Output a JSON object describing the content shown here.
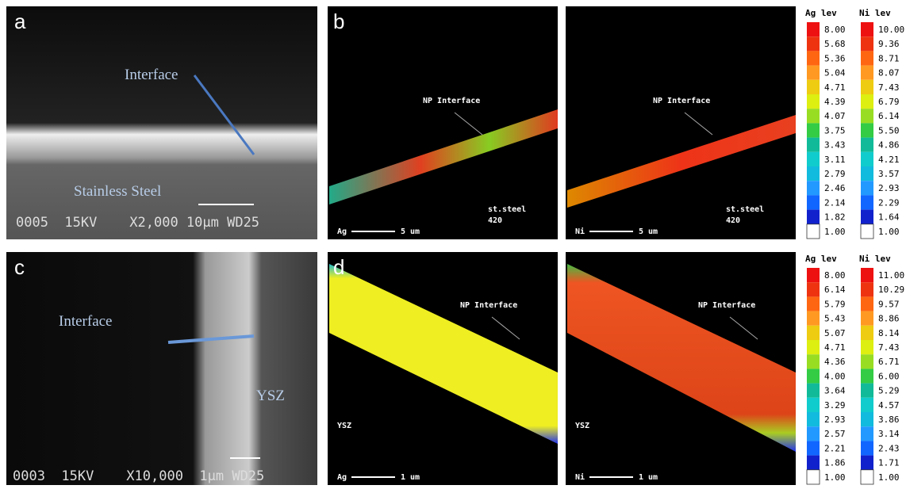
{
  "panel_a": {
    "label": "a",
    "interface": "Interface",
    "substrate": "Stainless Steel",
    "info": "0005  15KV    X2,000 10μm WD25"
  },
  "panel_b": {
    "label": "b",
    "maps": [
      {
        "element": "Ag",
        "annotation": "NP Interface",
        "scale": "5 um",
        "substrate": "st.steel",
        "grade": "420"
      },
      {
        "element": "Ni",
        "annotation": "NP Interface",
        "scale": "5 um",
        "substrate": "st.steel",
        "grade": "420"
      }
    ],
    "scales": [
      {
        "title": "Ag lev",
        "levels": [
          "8.00",
          "5.68",
          "5.36",
          "5.04",
          "4.71",
          "4.39",
          "4.07",
          "3.75",
          "3.43",
          "3.11",
          "2.79",
          "2.46",
          "2.14",
          "1.82",
          "1.00"
        ]
      },
      {
        "title": "Ni lev",
        "levels": [
          "10.00",
          "9.36",
          "8.71",
          "8.07",
          "7.43",
          "6.79",
          "6.14",
          "5.50",
          "4.86",
          "4.21",
          "3.57",
          "2.93",
          "2.29",
          "1.64",
          "1.00"
        ]
      }
    ]
  },
  "panel_c": {
    "label": "c",
    "interface": "Interface",
    "layer": "YSZ",
    "info": "0003  15KV    X10,000  1μm WD25"
  },
  "panel_d": {
    "label": "d",
    "maps": [
      {
        "element": "Ag",
        "annotation": "NP Interface",
        "scale": "1 um",
        "substrate": "YSZ"
      },
      {
        "element": "Ni",
        "annotation": "NP Interface",
        "scale": "1 um",
        "substrate": "YSZ"
      }
    ],
    "scales": [
      {
        "title": "Ag lev",
        "levels": [
          "8.00",
          "6.14",
          "5.79",
          "5.43",
          "5.07",
          "4.71",
          "4.36",
          "4.00",
          "3.64",
          "3.29",
          "2.93",
          "2.57",
          "2.21",
          "1.86",
          "1.00"
        ]
      },
      {
        "title": "Ni lev",
        "levels": [
          "11.00",
          "10.29",
          "9.57",
          "8.86",
          "8.14",
          "7.43",
          "6.71",
          "6.00",
          "5.29",
          "4.57",
          "3.86",
          "3.14",
          "2.43",
          "1.71",
          "1.00"
        ]
      }
    ]
  }
}
